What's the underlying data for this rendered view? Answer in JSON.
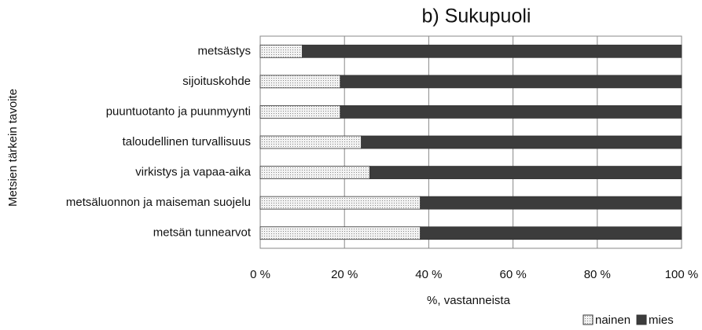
{
  "chart_data": {
    "type": "stacked_bar_horizontal",
    "title": "b) Sukupuoli",
    "y_label": "Metsien tärkein tavoite",
    "x_label": "%, vastanneista",
    "categories": [
      "metsästys",
      "sijoituskohde",
      "puuntuotanto ja puunmyynti",
      "taloudellinen turvallisuus",
      "virkistys ja vapaa-aika",
      "metsäluonnon ja maiseman suojelu",
      "metsän tunnearvot"
    ],
    "series": [
      {
        "name": "nainen",
        "color": "#dcdcdc",
        "values": [
          10,
          19,
          19,
          24,
          26,
          38,
          38
        ]
      },
      {
        "name": "mies",
        "color": "#3c3c3c",
        "values": [
          90,
          81,
          81,
          76,
          74,
          62,
          62
        ]
      }
    ],
    "xlim": [
      0,
      100
    ],
    "xticks": [
      {
        "value": 0,
        "label": "0 %"
      },
      {
        "value": 20,
        "label": "20 %"
      },
      {
        "value": 40,
        "label": "40 %"
      },
      {
        "value": 60,
        "label": "60 %"
      },
      {
        "value": 80,
        "label": "80 %"
      },
      {
        "value": 100,
        "label": "100 %"
      }
    ],
    "grid": true,
    "legend": "bottom-right"
  }
}
